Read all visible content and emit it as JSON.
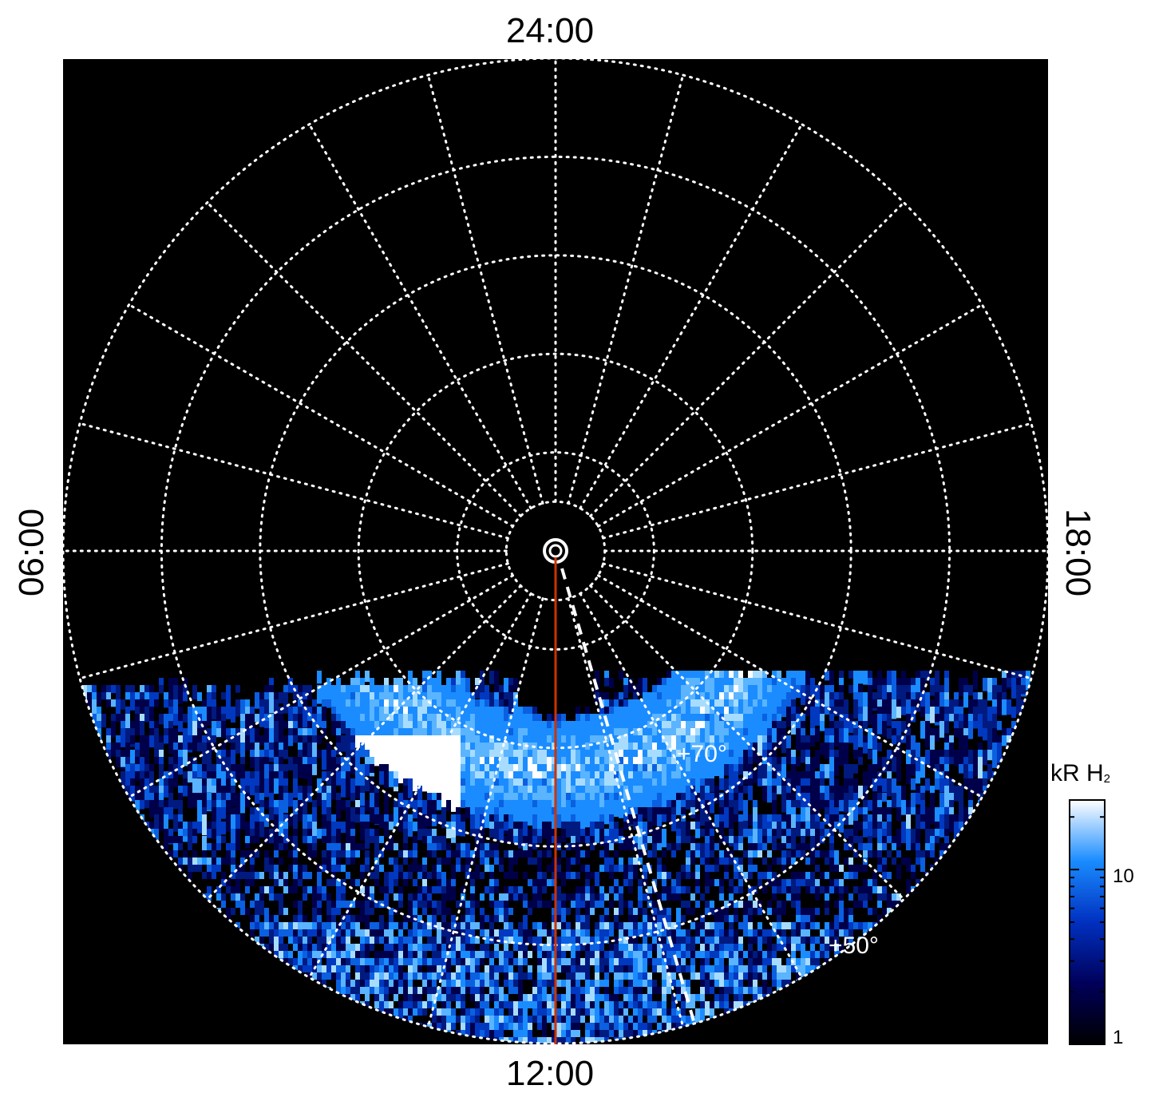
{
  "chart_data": {
    "type": "heatmap",
    "projection": "polar",
    "local_time_labels": {
      "top": "24:00",
      "bottom": "12:00",
      "left": "06:00",
      "right": "18:00"
    },
    "latitude_labels": [
      "+70°",
      "+50°"
    ],
    "latitude_grid_deg": [
      90,
      85,
      80,
      70,
      60,
      50,
      40
    ],
    "longitude_grid_spacing_hours": 1,
    "colorbar": {
      "title": "kR H",
      "title_subscript": "2",
      "scale": "log",
      "range": [
        1,
        25
      ],
      "ticks": [
        "10",
        "1"
      ],
      "colors": [
        "#000000",
        "#00005a",
        "#0030c0",
        "#1a8cff",
        "#ffffff"
      ]
    },
    "meridian_line": {
      "local_time": "12:00",
      "color": "#cc3300"
    },
    "grid": true
  }
}
